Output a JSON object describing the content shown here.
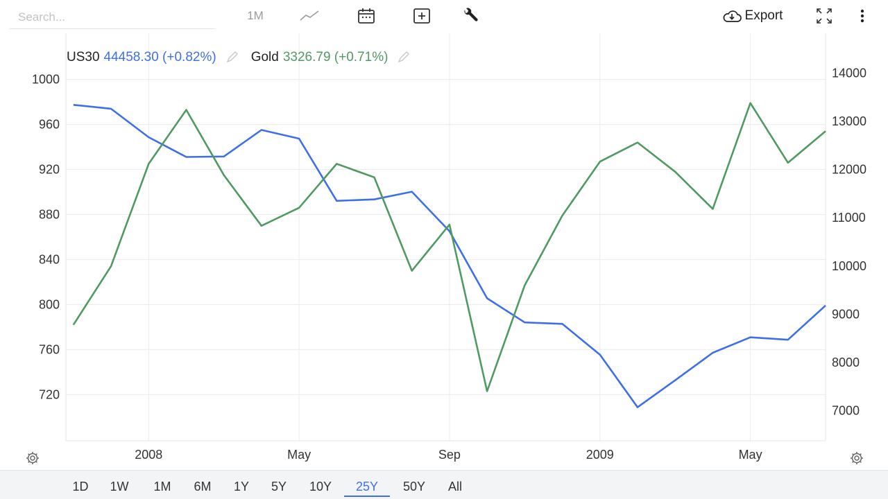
{
  "toolbar": {
    "search_placeholder": "Search...",
    "interval_label": "1M",
    "export_label": "Export",
    "icons": [
      "line-chart-icon",
      "calendar-icon",
      "add-indicator-icon",
      "wrench-icon",
      "cloud-download-icon",
      "fullscreen-icon",
      "more-vertical-icon"
    ]
  },
  "legend": {
    "us30_name": "US30",
    "us30_value": "44458.30 (+0.82%)",
    "gold_name": "Gold",
    "gold_value": "3326.79 (+0.71%)"
  },
  "colors": {
    "us30": "#3f6fe8",
    "gold": "#4e9a62",
    "grid": "#ececec",
    "axis_text": "#333333"
  },
  "ranges": [
    "1D",
    "1W",
    "1M",
    "6M",
    "1Y",
    "5Y",
    "10Y",
    "25Y",
    "50Y",
    "All"
  ],
  "active_range": "25Y",
  "chart_data": {
    "type": "line",
    "title": "",
    "x_tick_labels": [
      "2008",
      "May",
      "Sep",
      "2009",
      "May"
    ],
    "x_tick_positions": [
      2,
      6,
      10,
      14,
      18
    ],
    "x_range": [
      -0.2,
      20
    ],
    "left_axis": {
      "ticks": [
        720,
        760,
        800,
        840,
        880,
        920,
        960,
        1000
      ],
      "range": [
        679,
        1041
      ]
    },
    "right_axis": {
      "ticks": [
        7000,
        8000,
        9000,
        10000,
        11000,
        12000,
        13000,
        14000
      ],
      "range": [
        6375,
        14825
      ]
    },
    "series": [
      {
        "name": "US30",
        "axis": "right",
        "values": [
          13340,
          13260,
          12670,
          12260,
          12270,
          12820,
          12640,
          11350,
          11380,
          11540,
          10720,
          9330,
          8830,
          8800,
          8160,
          7070,
          7630,
          8200,
          8520,
          8470,
          9180
        ]
      },
      {
        "name": "Gold",
        "axis": "left",
        "values": [
          782,
          834,
          925,
          973,
          915,
          870,
          886,
          925,
          913,
          830,
          871,
          723,
          817,
          879,
          927,
          944,
          918,
          885,
          979,
          926,
          954
        ]
      }
    ],
    "grid": true,
    "legend_position": "top-left"
  }
}
